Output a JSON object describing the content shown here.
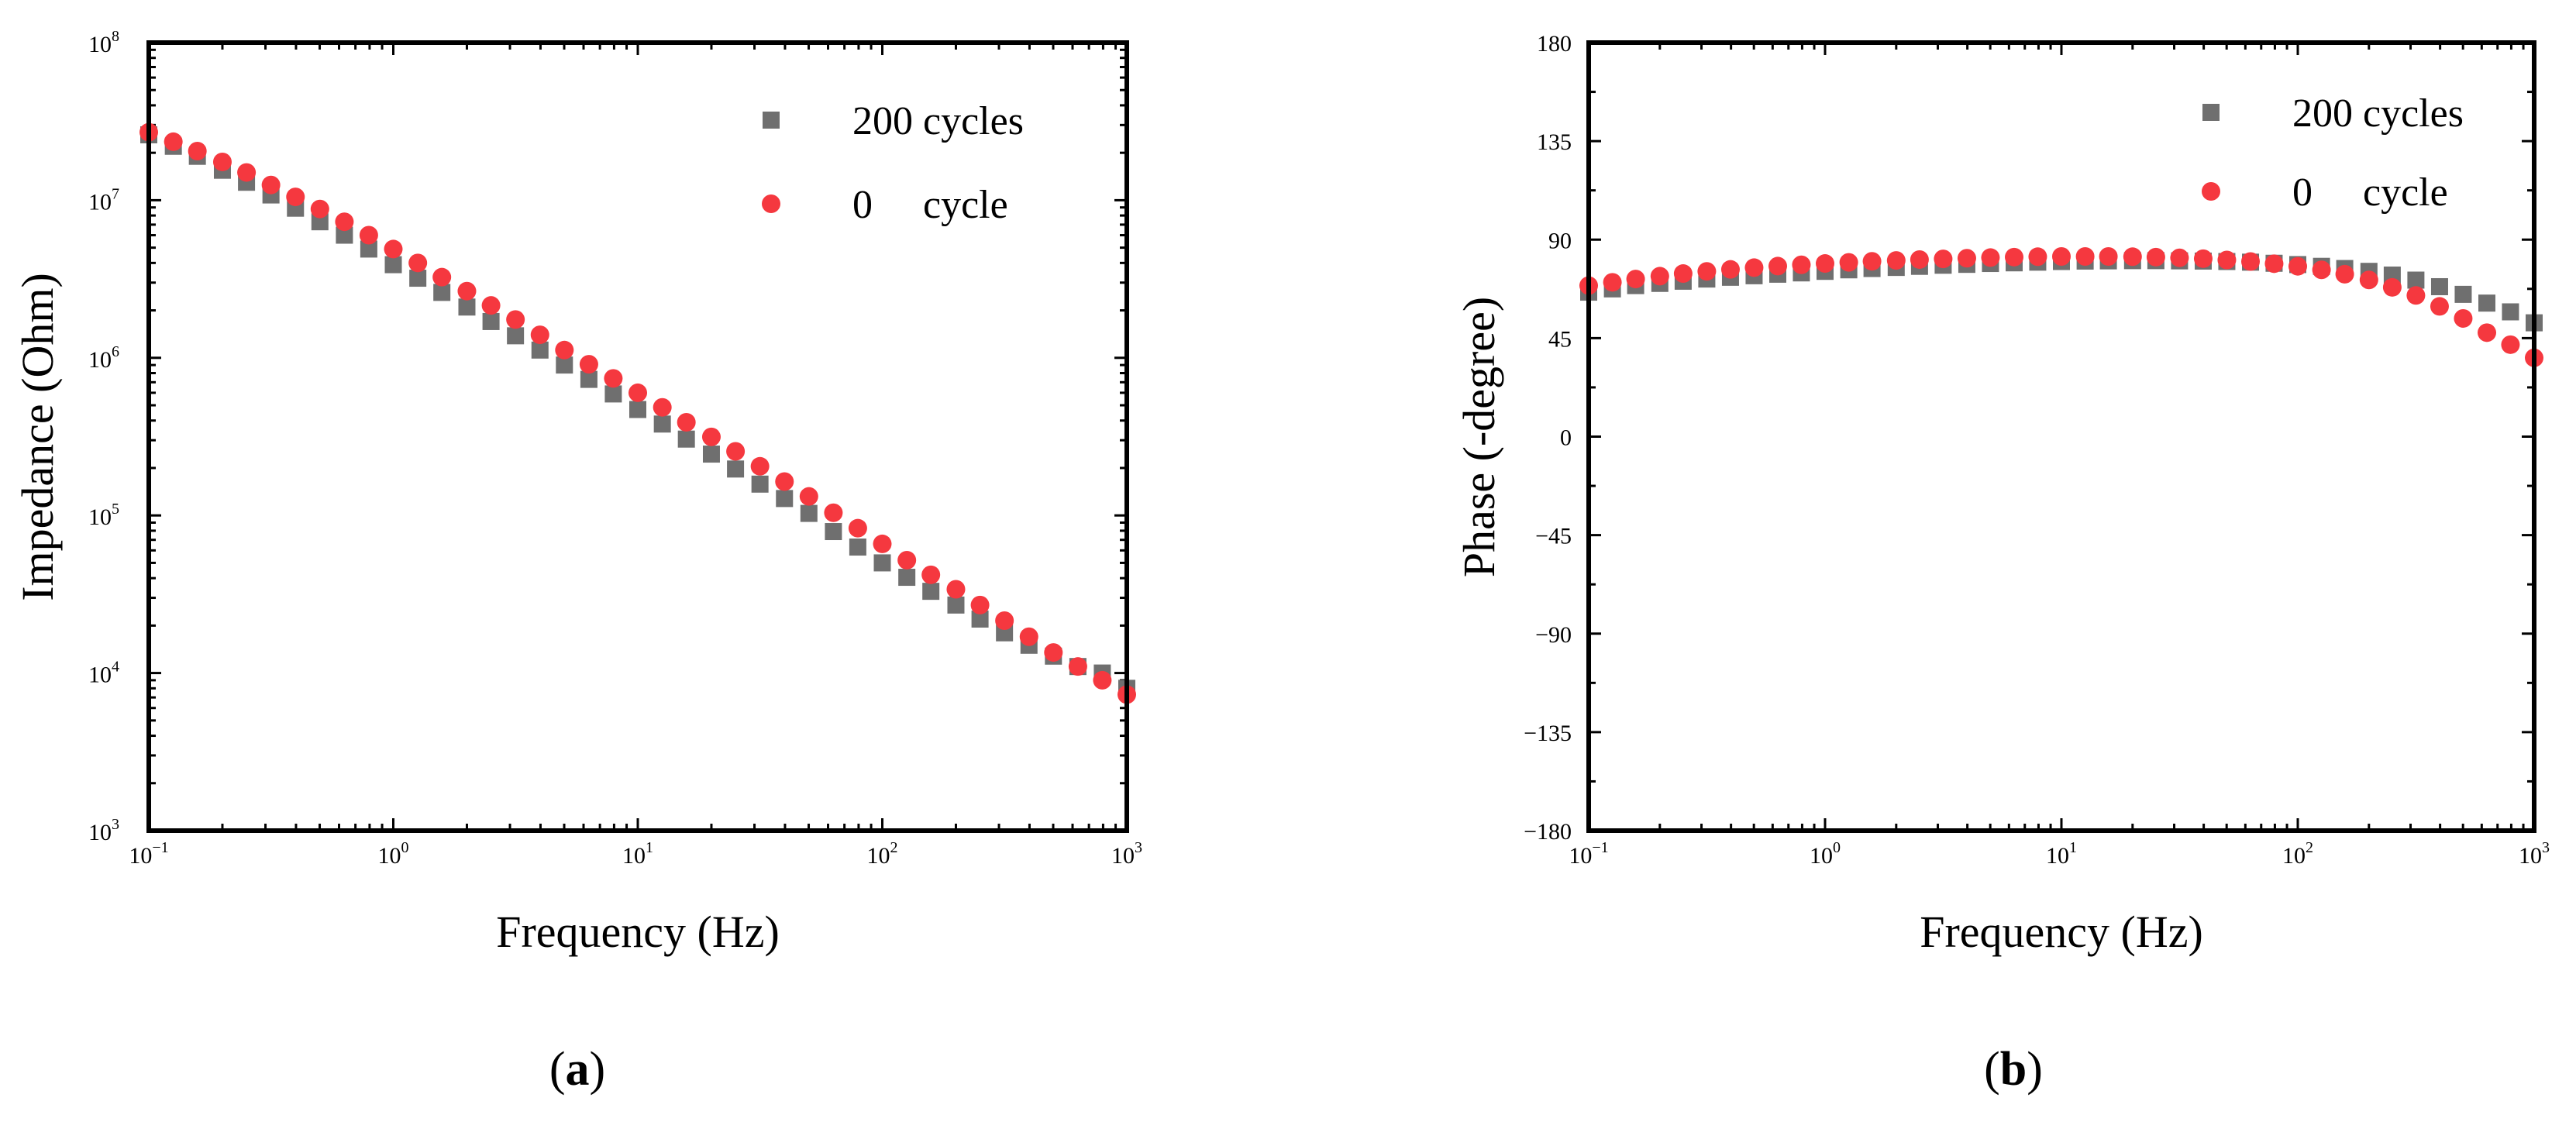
{
  "figure": {
    "panels": [
      {
        "label_open": "(",
        "label_letter": "a",
        "label_close": ")"
      },
      {
        "label_open": "(",
        "label_letter": "b",
        "label_close": ")"
      }
    ]
  },
  "chart_data": [
    {
      "type": "scatter",
      "title": "",
      "xlabel": "Frequency (Hz)",
      "ylabel": "Impedance (Ohm)",
      "xscale": "log",
      "yscale": "log",
      "xlim": [
        0.1,
        1000
      ],
      "ylim": [
        1000,
        100000000
      ],
      "x_ticks": [
        0.1,
        1,
        10,
        100,
        1000
      ],
      "x_tick_labels": [
        {
          "base": "10",
          "exp": "−1"
        },
        {
          "base": "10",
          "exp": "0"
        },
        {
          "base": "10",
          "exp": "1"
        },
        {
          "base": "10",
          "exp": "2"
        },
        {
          "base": "10",
          "exp": "3"
        }
      ],
      "y_ticks": [
        1000,
        10000,
        100000,
        1000000,
        10000000,
        100000000
      ],
      "y_tick_labels": [
        {
          "base": "10",
          "exp": "3"
        },
        {
          "base": "10",
          "exp": "4"
        },
        {
          "base": "10",
          "exp": "5"
        },
        {
          "base": "10",
          "exp": "6"
        },
        {
          "base": "10",
          "exp": "7"
        },
        {
          "base": "10",
          "exp": "8"
        }
      ],
      "grid": false,
      "legend_position": "top-right",
      "series": [
        {
          "name": "200 cycles",
          "marker": "square",
          "color": "#6f6f6f",
          "x": [
            0.1,
            0.126,
            0.158,
            0.2,
            0.251,
            0.316,
            0.398,
            0.501,
            0.631,
            0.794,
            1.0,
            1.26,
            1.58,
            2.0,
            2.51,
            3.16,
            3.98,
            5.01,
            6.31,
            7.94,
            10.0,
            12.6,
            15.8,
            20.0,
            25.1,
            31.6,
            39.8,
            50.1,
            63.1,
            79.4,
            100,
            126,
            158,
            200,
            251,
            316,
            398,
            501,
            631,
            794,
            1000
          ],
          "y": [
            26000000,
            22000000,
            19000000,
            15500000,
            13000000,
            10800000,
            8900000,
            7300000,
            6000000,
            4900000,
            3900000,
            3200000,
            2600000,
            2100000,
            1700000,
            1380000,
            1120000,
            900000,
            730000,
            590000,
            470000,
            380000,
            305000,
            245000,
            197000,
            158000,
            128000,
            103000,
            79000,
            63000,
            50000,
            40500,
            33000,
            27000,
            22000,
            18000,
            15000,
            12800,
            11000,
            10000,
            8000
          ]
        },
        {
          "name": "0 cycle",
          "marker": "circle",
          "color": "#f5383f",
          "x": [
            0.1,
            0.126,
            0.158,
            0.2,
            0.251,
            0.316,
            0.398,
            0.501,
            0.631,
            0.794,
            1.0,
            1.26,
            1.58,
            2.0,
            2.51,
            3.16,
            3.98,
            5.01,
            6.31,
            7.94,
            10.0,
            12.6,
            15.8,
            20.0,
            25.1,
            31.6,
            39.8,
            50.1,
            63.1,
            79.4,
            100,
            126,
            158,
            200,
            251,
            316,
            398,
            501,
            631,
            794,
            1000
          ],
          "y": [
            27000000,
            23500000,
            20500000,
            17500000,
            15000000,
            12500000,
            10500000,
            8800000,
            7300000,
            6000000,
            4900000,
            4000000,
            3250000,
            2650000,
            2150000,
            1750000,
            1400000,
            1120000,
            910000,
            740000,
            600000,
            485000,
            390000,
            315000,
            255000,
            205000,
            164000,
            132000,
            104000,
            83000,
            66000,
            52000,
            42000,
            34000,
            27000,
            21500,
            17000,
            13500,
            11000,
            9000,
            7300
          ]
        }
      ],
      "legend": [
        {
          "marker": "square",
          "text": "200 cycles"
        },
        {
          "marker": "circle",
          "text": "0     cycle"
        }
      ]
    },
    {
      "type": "scatter",
      "title": "",
      "xlabel": "Frequency (Hz)",
      "ylabel": "Phase (-degree)",
      "xscale": "log",
      "yscale": "linear",
      "xlim": [
        0.1,
        1000
      ],
      "ylim": [
        -180,
        180
      ],
      "x_ticks": [
        0.1,
        1,
        10,
        100,
        1000
      ],
      "x_tick_labels": [
        {
          "base": "10",
          "exp": "−1"
        },
        {
          "base": "10",
          "exp": "0"
        },
        {
          "base": "10",
          "exp": "1"
        },
        {
          "base": "10",
          "exp": "2"
        },
        {
          "base": "10",
          "exp": "3"
        }
      ],
      "y_ticks": [
        -180,
        -135,
        -90,
        -45,
        0,
        45,
        90,
        135,
        180
      ],
      "y_tick_labels": [
        "−180",
        "−135",
        "−90",
        "−45",
        "0",
        "45",
        "90",
        "135",
        "180"
      ],
      "grid": false,
      "legend_position": "top-right",
      "series": [
        {
          "name": "200 cycles",
          "marker": "square",
          "color": "#6f6f6f",
          "x": [
            0.1,
            0.126,
            0.158,
            0.2,
            0.251,
            0.316,
            0.398,
            0.501,
            0.631,
            0.794,
            1.0,
            1.26,
            1.58,
            2.0,
            2.51,
            3.16,
            3.98,
            5.01,
            6.31,
            7.94,
            10.0,
            12.6,
            15.8,
            20.0,
            25.1,
            31.6,
            39.8,
            50.1,
            63.1,
            79.4,
            100,
            126,
            158,
            200,
            251,
            316,
            398,
            501,
            631,
            794,
            1000
          ],
          "y": [
            66,
            67.5,
            69,
            70,
            71,
            72,
            72.8,
            73.5,
            74.2,
            74.8,
            75.5,
            76.2,
            76.8,
            77.3,
            77.8,
            78.3,
            78.7,
            79.1,
            79.4,
            79.7,
            80,
            80.2,
            80.3,
            80.4,
            80.4,
            80.3,
            80.2,
            80,
            79.7,
            79.2,
            78.6,
            77.8,
            76.8,
            75.5,
            73.8,
            71.5,
            68.5,
            65,
            61,
            57,
            52
          ]
        },
        {
          "name": "0 cycle",
          "marker": "circle",
          "color": "#f5383f",
          "x": [
            0.1,
            0.126,
            0.158,
            0.2,
            0.251,
            0.316,
            0.398,
            0.501,
            0.631,
            0.794,
            1.0,
            1.26,
            1.58,
            2.0,
            2.51,
            3.16,
            3.98,
            5.01,
            6.31,
            7.94,
            10.0,
            12.6,
            15.8,
            20.0,
            25.1,
            31.6,
            39.8,
            50.1,
            63.1,
            79.4,
            100,
            126,
            158,
            200,
            251,
            316,
            398,
            501,
            631,
            794,
            1000
          ],
          "y": [
            69,
            70.5,
            72,
            73.3,
            74.5,
            75.5,
            76.4,
            77.2,
            77.9,
            78.5,
            79.1,
            79.6,
            80.1,
            80.5,
            80.9,
            81.2,
            81.5,
            81.8,
            82,
            82.2,
            82.3,
            82.3,
            82.3,
            82.2,
            82,
            81.7,
            81.3,
            80.7,
            80,
            79,
            77.8,
            76.2,
            74.2,
            71.6,
            68.2,
            64.5,
            59.5,
            54,
            47.5,
            42,
            36
          ]
        }
      ],
      "legend": [
        {
          "marker": "square",
          "text": "200 cycles"
        },
        {
          "marker": "circle",
          "text": "0     cycle"
        }
      ]
    }
  ]
}
